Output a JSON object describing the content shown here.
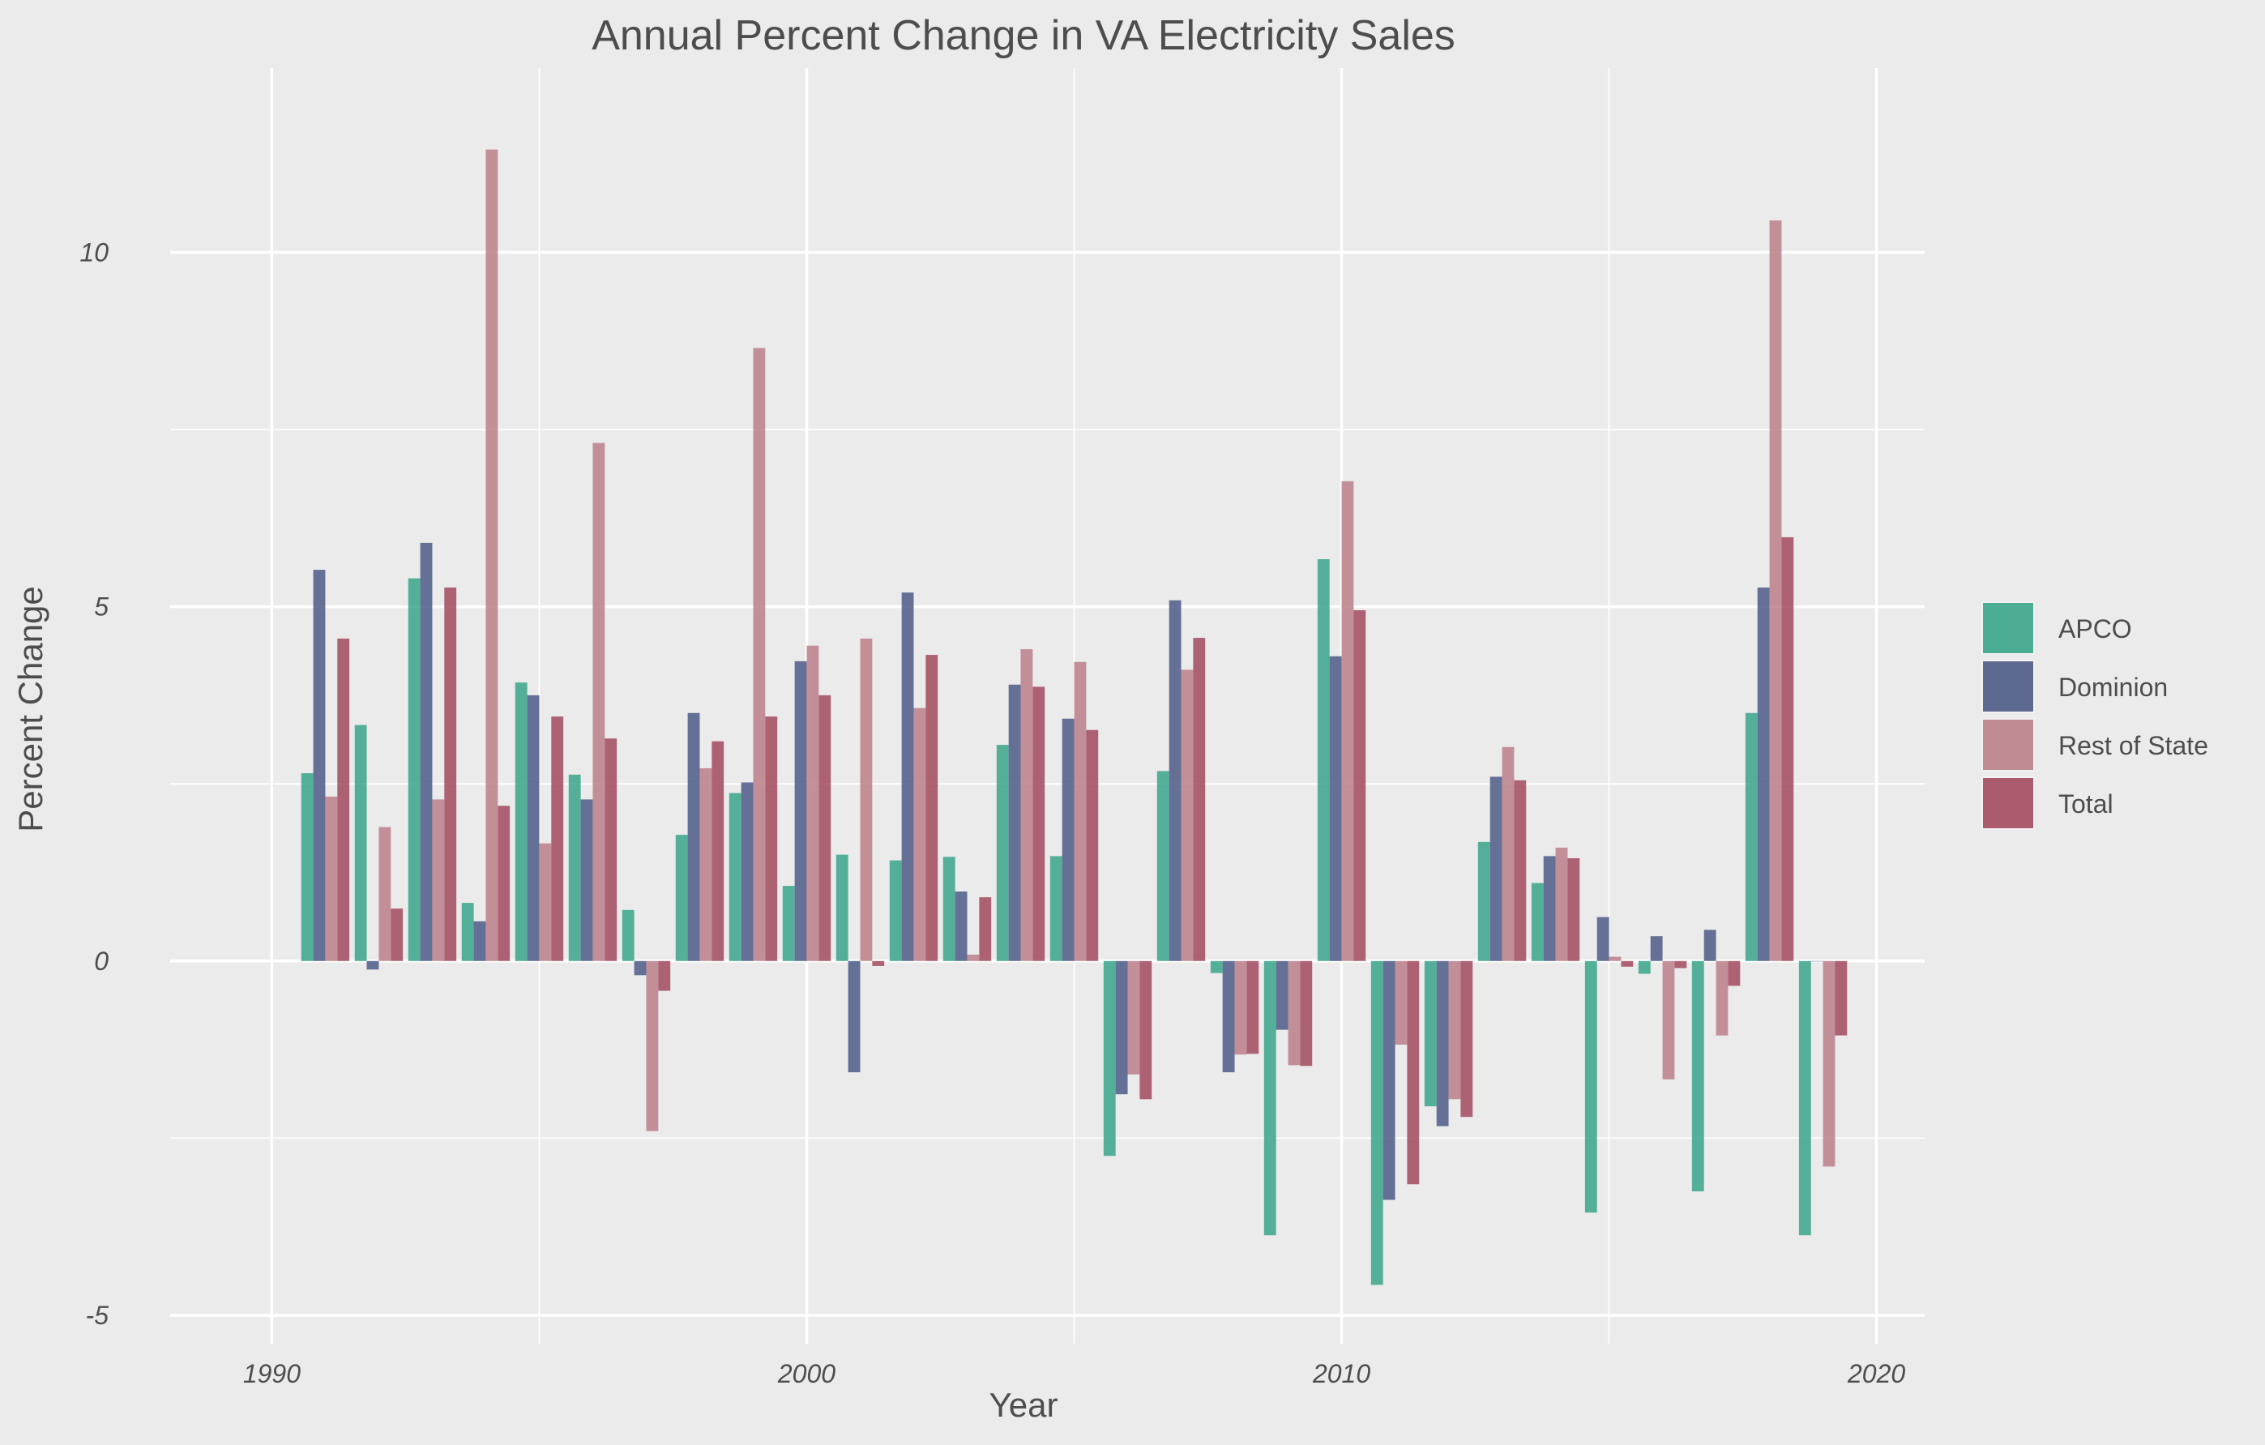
{
  "chart_data": {
    "type": "bar",
    "title": "Annual Percent Change in VA Electricity Sales",
    "xlabel": "Year",
    "ylabel": "Percent Change",
    "xlim": [
      1988.1,
      2020.9
    ],
    "ylim": [
      -5.4,
      12.6
    ],
    "x_ticks": [
      1990,
      2000,
      2010,
      2020
    ],
    "y_ticks": [
      -5,
      0,
      5,
      10
    ],
    "grid": true,
    "legend_position": "right",
    "years": [
      1991,
      1992,
      1993,
      1994,
      1995,
      1996,
      1997,
      1998,
      1999,
      2000,
      2001,
      2002,
      2003,
      2004,
      2005,
      2006,
      2007,
      2008,
      2009,
      2010,
      2011,
      2012,
      2013,
      2014,
      2015,
      2016,
      2017,
      2018,
      2019
    ],
    "series": [
      {
        "name": "APCO",
        "color": "#3aa48a",
        "values": [
          2.65,
          3.33,
          5.4,
          0.82,
          3.93,
          2.63,
          0.72,
          1.78,
          2.37,
          1.06,
          1.5,
          1.42,
          1.47,
          3.05,
          1.48,
          -2.75,
          2.68,
          -0.17,
          -3.87,
          5.67,
          -4.57,
          -2.05,
          1.68,
          1.1,
          -3.55,
          -0.18,
          -3.25,
          3.5,
          -3.87
        ]
      },
      {
        "name": "Dominion",
        "color": "#4c5a86",
        "values": [
          5.52,
          -0.12,
          5.9,
          0.56,
          3.75,
          2.28,
          -0.2,
          3.5,
          2.52,
          4.23,
          -1.57,
          5.2,
          0.98,
          3.9,
          3.42,
          -1.88,
          5.09,
          -1.57,
          -0.97,
          4.3,
          -3.37,
          -2.33,
          2.6,
          1.48,
          0.62,
          0.35,
          0.44,
          5.27,
          0.0
        ]
      },
      {
        "name": "Rest of State",
        "color": "#bb7f89",
        "values": [
          2.32,
          1.89,
          2.28,
          11.45,
          1.66,
          7.31,
          -2.4,
          2.72,
          8.65,
          4.45,
          4.55,
          3.57,
          0.09,
          4.4,
          4.22,
          -1.6,
          4.11,
          -1.32,
          -1.47,
          6.77,
          -1.18,
          -1.95,
          3.02,
          1.6,
          0.06,
          -1.67,
          -1.05,
          10.45,
          -2.9
        ]
      },
      {
        "name": "Total",
        "color": "#a24a5e",
        "values": [
          4.55,
          0.74,
          5.27,
          2.19,
          3.45,
          3.14,
          -0.42,
          3.1,
          3.45,
          3.75,
          -0.07,
          4.32,
          0.9,
          3.87,
          3.26,
          -1.95,
          4.56,
          -1.31,
          -1.48,
          4.95,
          -3.15,
          -2.2,
          2.55,
          1.45,
          -0.08,
          -0.1,
          -0.35,
          5.98,
          -1.05
        ]
      }
    ]
  }
}
